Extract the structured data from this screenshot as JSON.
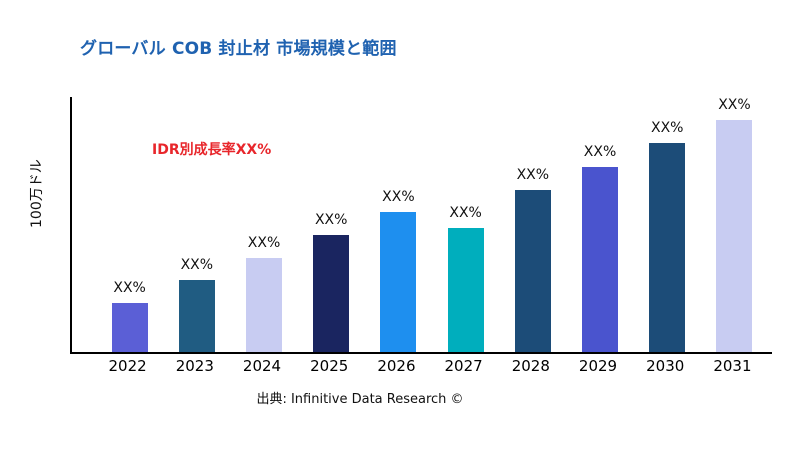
{
  "title": "グローバル COB 封止材 市場規模と範囲",
  "annotation": "IDR別成長率XX%",
  "source": "出典: Infinitive Data Research ©",
  "colors": {
    "title": "#1F62B0",
    "annotation": "#E8262B",
    "axis": "#000000",
    "label_text": "#111111"
  },
  "chart_data": {
    "type": "bar",
    "title": "グローバル COB 封止材 市場規模と範囲",
    "xlabel": "",
    "ylabel": "100万ドル",
    "categories": [
      "2022",
      "2023",
      "2024",
      "2025",
      "2026",
      "2027",
      "2028",
      "2029",
      "2030",
      "2031"
    ],
    "values": [
      49,
      72,
      94,
      117,
      140,
      124,
      162,
      185,
      209,
      232
    ],
    "value_labels": [
      "XX%",
      "XX%",
      "XX%",
      "XX%",
      "XX%",
      "XX%",
      "XX%",
      "XX%",
      "XX%",
      "XX%"
    ],
    "bar_colors": [
      "#5B5FD6",
      "#205C82",
      "#C8CCF2",
      "#1A2560",
      "#1E8FEF",
      "#00AEBD",
      "#1C4C78",
      "#4A54CE",
      "#1C4C78",
      "#C8CCF2"
    ],
    "ylim": [
      0,
      255
    ],
    "grid": false,
    "legend": "none",
    "annotation": "IDR別成長率XX%"
  }
}
